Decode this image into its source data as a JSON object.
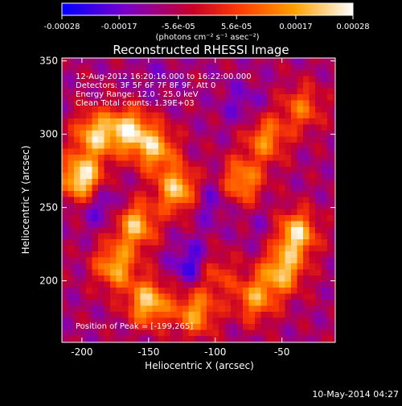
{
  "chart_data": {
    "type": "heatmap",
    "title": "Reconstructed RHESSI Image",
    "xlabel": "Heliocentric X (arcsec)",
    "ylabel": "Heliocentric Y (arcsec)",
    "xlim": [
      -215,
      -10
    ],
    "ylim": [
      158,
      352
    ],
    "x_ticks": [
      -200,
      -150,
      -100,
      -50
    ],
    "y_ticks": [
      200,
      250,
      300,
      350
    ],
    "annotations": [
      "12-Aug-2012 16:20:16.000 to 16:22:00.000",
      "Detectors: 3F 5F 6F 7F 8F 9F, Att 0",
      "Energy Range: 12.0 - 25.0 keV",
      "Clean     Total counts: 1.39E+03"
    ],
    "peak_label": "Position of Peak = [-199,265]",
    "peak": [
      -199,
      265
    ],
    "colorbar": {
      "ticks": [
        "-0.00028",
        "-0.00017",
        "-5.6e-05",
        "5.6e-05",
        "0.00017",
        "0.00028"
      ],
      "range": [
        -0.00028,
        0.00028
      ],
      "unit_label": "(photons cm⁻² s⁻¹ asec⁻²)",
      "colors": [
        "#0000ff",
        "#7a00c8",
        "#c80028",
        "#ff4000",
        "#ffa000",
        "#ffffff"
      ]
    },
    "bright_regions": [
      {
        "x": -200,
        "y": 270,
        "value": 0.00028
      },
      {
        "x": -190,
        "y": 300,
        "value": 0.0002
      },
      {
        "x": -165,
        "y": 303,
        "value": 0.00022
      },
      {
        "x": -145,
        "y": 290,
        "value": 0.00018
      },
      {
        "x": -128,
        "y": 262,
        "value": 0.00022
      },
      {
        "x": -160,
        "y": 238,
        "value": 0.0002
      },
      {
        "x": -175,
        "y": 210,
        "value": 0.00018
      },
      {
        "x": -150,
        "y": 185,
        "value": 0.00022
      },
      {
        "x": -115,
        "y": 178,
        "value": 0.00016
      },
      {
        "x": -80,
        "y": 268,
        "value": 0.00016
      },
      {
        "x": -62,
        "y": 297,
        "value": 0.00014
      },
      {
        "x": -40,
        "y": 232,
        "value": 0.00024
      },
      {
        "x": -50,
        "y": 207,
        "value": 0.0002
      },
      {
        "x": -70,
        "y": 188,
        "value": 0.00015
      },
      {
        "x": -103,
        "y": 206,
        "value": 0.00012
      },
      {
        "x": -35,
        "y": 318,
        "value": 0.0001
      }
    ],
    "dark_regions": [
      {
        "x": -115,
        "y": 210,
        "value": -0.00028
      },
      {
        "x": -105,
        "y": 255,
        "value": -0.00018
      },
      {
        "x": -185,
        "y": 252,
        "value": -0.0002
      },
      {
        "x": -80,
        "y": 320,
        "value": -0.00016
      },
      {
        "x": -60,
        "y": 235,
        "value": -0.00014
      },
      {
        "x": -140,
        "y": 340,
        "value": -0.00012
      },
      {
        "x": -160,
        "y": 330,
        "value": -0.0001
      }
    ]
  },
  "footer": {
    "date": "10-May-2014 04:27"
  }
}
